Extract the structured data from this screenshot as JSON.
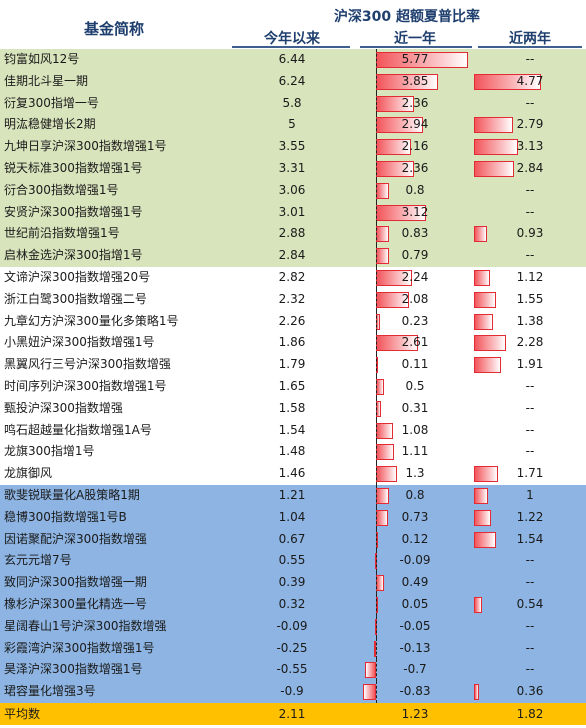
{
  "header": {
    "name_label": "基金简称",
    "group_label": "沪深300  超额夏普比率",
    "col_ytd": "今年以来",
    "col_1y": "近一年",
    "col_2y": "近两年"
  },
  "rows": [
    {
      "name": "钧富如风12号",
      "ytd": "6.44",
      "y1": 5.77,
      "y1_text": "5.77",
      "y2": null,
      "y2_text": "--",
      "group": "g1"
    },
    {
      "name": "佳期北斗星一期",
      "ytd": "6.24",
      "y1": 3.85,
      "y1_text": "3.85",
      "y2": 4.77,
      "y2_text": "4.77",
      "group": "g1"
    },
    {
      "name": "衍复300指增一号",
      "ytd": "5.8",
      "y1": 2.36,
      "y1_text": "2.36",
      "y2": null,
      "y2_text": "--",
      "group": "g1"
    },
    {
      "name": "明汯稳健增长2期",
      "ytd": "5",
      "y1": 2.94,
      "y1_text": "2.94",
      "y2": 2.79,
      "y2_text": "2.79",
      "group": "g1"
    },
    {
      "name": "九坤日享沪深300指数增强1号",
      "ytd": "3.55",
      "y1": 2.16,
      "y1_text": "2.16",
      "y2": 3.13,
      "y2_text": "3.13",
      "group": "g1"
    },
    {
      "name": "锐天标准300指数增强1号",
      "ytd": "3.31",
      "y1": 2.36,
      "y1_text": "2.36",
      "y2": 2.84,
      "y2_text": "2.84",
      "group": "g1"
    },
    {
      "name": "衍合300指数增强1号",
      "ytd": "3.06",
      "y1": 0.8,
      "y1_text": "0.8",
      "y2": null,
      "y2_text": "--",
      "group": "g1"
    },
    {
      "name": "安贤沪深300指数增强1号",
      "ytd": "3.01",
      "y1": 3.12,
      "y1_text": "3.12",
      "y2": null,
      "y2_text": "--",
      "group": "g1"
    },
    {
      "name": "世纪前沿指数增强1号",
      "ytd": "2.88",
      "y1": 0.83,
      "y1_text": "0.83",
      "y2": 0.93,
      "y2_text": "0.93",
      "group": "g1"
    },
    {
      "name": "启林金选沪深300指增1号",
      "ytd": "2.84",
      "y1": 0.79,
      "y1_text": "0.79",
      "y2": null,
      "y2_text": "--",
      "group": "g1"
    },
    {
      "name": "文谛沪深300指数增强20号",
      "ytd": "2.82",
      "y1": 2.24,
      "y1_text": "2.24",
      "y2": 1.12,
      "y2_text": "1.12",
      "group": "g2"
    },
    {
      "name": "浙江白鹭300指数增强二号",
      "ytd": "2.32",
      "y1": 2.08,
      "y1_text": "2.08",
      "y2": 1.55,
      "y2_text": "1.55",
      "group": "g2"
    },
    {
      "name": "九章幻方沪深300量化多策略1号",
      "ytd": "2.26",
      "y1": 0.23,
      "y1_text": "0.23",
      "y2": 1.38,
      "y2_text": "1.38",
      "group": "g2"
    },
    {
      "name": "小黑妞沪深300指数增强1号",
      "ytd": "1.86",
      "y1": 2.61,
      "y1_text": "2.61",
      "y2": 2.28,
      "y2_text": "2.28",
      "group": "g2"
    },
    {
      "name": "黑翼风行三号沪深300指数增强",
      "ytd": "1.79",
      "y1": 0.11,
      "y1_text": "0.11",
      "y2": 1.91,
      "y2_text": "1.91",
      "group": "g2"
    },
    {
      "name": "时间序列沪深300指数增强1号",
      "ytd": "1.65",
      "y1": 0.5,
      "y1_text": "0.5",
      "y2": null,
      "y2_text": "--",
      "group": "g2"
    },
    {
      "name": "甄投沪深300指数增强",
      "ytd": "1.58",
      "y1": 0.31,
      "y1_text": "0.31",
      "y2": null,
      "y2_text": "--",
      "group": "g2"
    },
    {
      "name": "鸣石超越量化指数增强1A号",
      "ytd": "1.54",
      "y1": 1.08,
      "y1_text": "1.08",
      "y2": null,
      "y2_text": "--",
      "group": "g2"
    },
    {
      "name": "龙旗300指增1号",
      "ytd": "1.48",
      "y1": 1.11,
      "y1_text": "1.11",
      "y2": null,
      "y2_text": "--",
      "group": "g2"
    },
    {
      "name": "龙旗御风",
      "ytd": "1.46",
      "y1": 1.3,
      "y1_text": "1.3",
      "y2": 1.71,
      "y2_text": "1.71",
      "group": "g2"
    },
    {
      "name": "歌斐锐联量化A股策略1期",
      "ytd": "1.21",
      "y1": 0.8,
      "y1_text": "0.8",
      "y2": 1.0,
      "y2_text": "1",
      "group": "g3"
    },
    {
      "name": "稳博300指数增强1号B",
      "ytd": "1.04",
      "y1": 0.73,
      "y1_text": "0.73",
      "y2": 1.22,
      "y2_text": "1.22",
      "group": "g3"
    },
    {
      "name": "因诺聚配沪深300指数增强",
      "ytd": "0.67",
      "y1": 0.12,
      "y1_text": "0.12",
      "y2": 1.54,
      "y2_text": "1.54",
      "group": "g3"
    },
    {
      "name": "玄元元增7号",
      "ytd": "0.55",
      "y1": -0.09,
      "y1_text": "-0.09",
      "y2": null,
      "y2_text": "--",
      "group": "g3"
    },
    {
      "name": "致同沪深300指数增强一期",
      "ytd": "0.39",
      "y1": 0.49,
      "y1_text": "0.49",
      "y2": null,
      "y2_text": "--",
      "group": "g3"
    },
    {
      "name": "橡杉沪深300量化精选一号",
      "ytd": "0.32",
      "y1": 0.05,
      "y1_text": "0.05",
      "y2": 0.54,
      "y2_text": "0.54",
      "group": "g3"
    },
    {
      "name": "星阔春山1号沪深300指数增强",
      "ytd": "-0.09",
      "y1": -0.05,
      "y1_text": "-0.05",
      "y2": null,
      "y2_text": "--",
      "group": "g3"
    },
    {
      "name": "彩霞湾沪深300指数增强1号",
      "ytd": "-0.25",
      "y1": -0.13,
      "y1_text": "-0.13",
      "y2": null,
      "y2_text": "--",
      "group": "g3"
    },
    {
      "name": "昊泽沪深300指数增强1号",
      "ytd": "-0.55",
      "y1": -0.7,
      "y1_text": "-0.7",
      "y2": null,
      "y2_text": "--",
      "group": "g3"
    },
    {
      "name": "珺容量化增强3号",
      "ytd": "-0.9",
      "y1": -0.83,
      "y1_text": "-0.83",
      "y2": 0.36,
      "y2_text": "0.36",
      "group": "g3"
    }
  ],
  "average": {
    "name": "平均数",
    "ytd": "2.11",
    "y1": "1.23",
    "y2": "1.82"
  },
  "colors": {
    "group1": "#d8e4bc",
    "group2": "#ffffff",
    "group3": "#8db4e2",
    "average": "#ffc000",
    "bar": "#f2555a",
    "header_text": "#1f3f6e"
  }
}
